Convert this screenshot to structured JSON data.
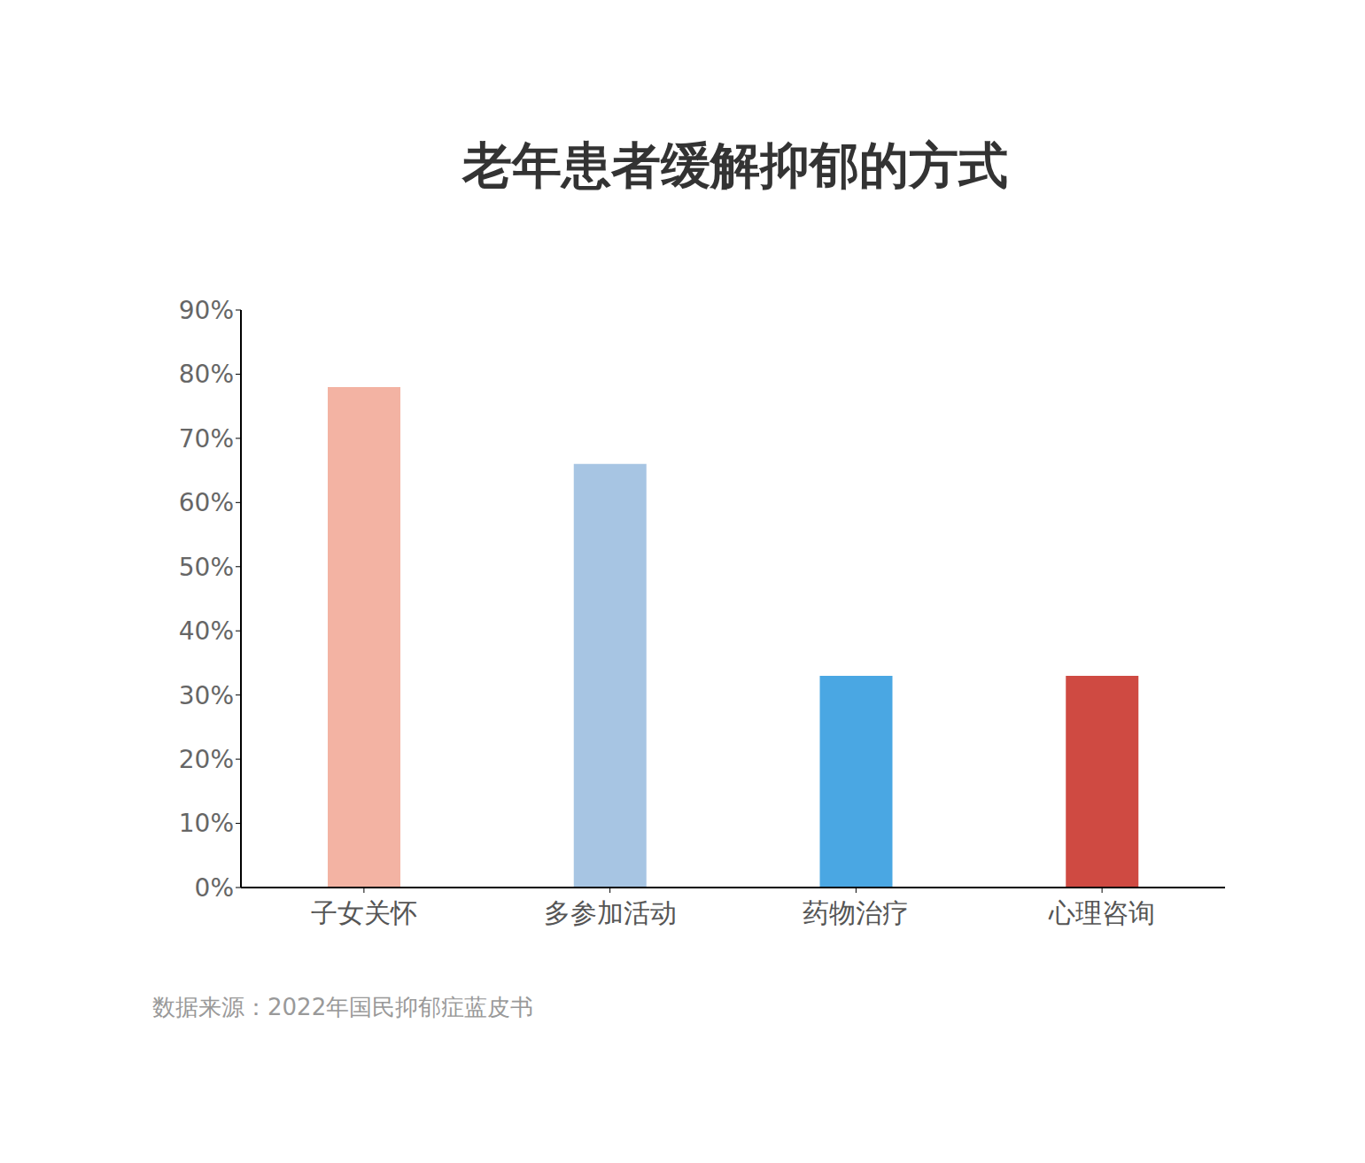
{
  "chart_data": {
    "type": "bar",
    "title": "老年患者缓解抑郁的方式",
    "subtitle": "数据来源：2022年国民抑郁症蓝皮书",
    "categories": [
      "子女关怀",
      "多参加活动",
      "药物治疗",
      "心理咨询"
    ],
    "values": [
      78,
      66,
      33,
      33
    ],
    "colors": [
      "#f3b3a3",
      "#a7c5e3",
      "#4aa7e3",
      "#cf4a42"
    ],
    "ylim": [
      0,
      90
    ],
    "yticks": [
      {
        "value": 0,
        "label": "0%"
      },
      {
        "value": 10,
        "label": "10%"
      },
      {
        "value": 20,
        "label": "20%"
      },
      {
        "value": 30,
        "label": "30%"
      },
      {
        "value": 40,
        "label": "40%"
      },
      {
        "value": 50,
        "label": "50%"
      },
      {
        "value": 60,
        "label": "60%"
      },
      {
        "value": 70,
        "label": "70%"
      },
      {
        "value": 80,
        "label": "80%"
      },
      {
        "value": 90,
        "label": "90%"
      }
    ],
    "grid": false
  }
}
